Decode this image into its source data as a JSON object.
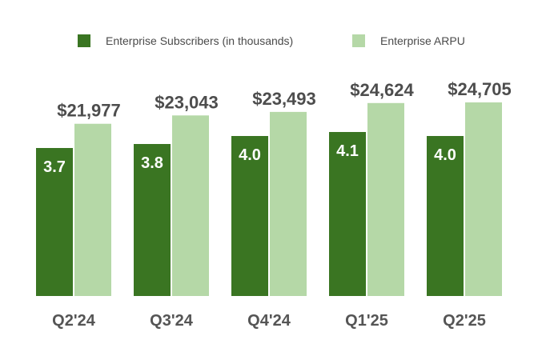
{
  "chart_data": {
    "type": "bar",
    "title": "",
    "xlabel": "",
    "ylabel": "",
    "categories": [
      "Q2'24",
      "Q3'24",
      "Q4'24",
      "Q1'25",
      "Q2'25"
    ],
    "series": [
      {
        "name": "Enterprise Subscribers (in thousands)",
        "color": "#3a7522",
        "values": [
          3.7,
          3.8,
          4.0,
          4.1,
          4.0
        ],
        "labels": [
          "3.7",
          "3.8",
          "4.0",
          "4.1",
          "4.0"
        ]
      },
      {
        "name": "Enterprise ARPU",
        "color": "#b5d8a7",
        "values": [
          21977,
          23043,
          23493,
          24624,
          24705
        ],
        "labels": [
          "$21,977",
          "$23,043",
          "$23,493",
          "$24,624",
          "$24,705"
        ]
      }
    ],
    "legend_position": "top-center",
    "grid": false
  }
}
